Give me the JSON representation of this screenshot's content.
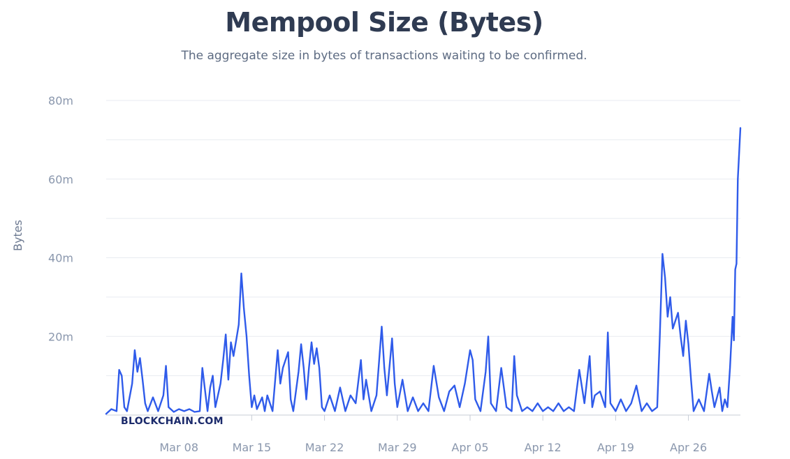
{
  "title": "Mempool Size (Bytes)",
  "subtitle": "The aggregate size in bytes of transactions waiting to be confirmed.",
  "watermark": "BLOCKCHAIN.COM",
  "colors": {
    "line": "#2f5bea",
    "grid": "#e8ebf0",
    "axis": "#c7ccd6",
    "text": "#8a97ad"
  },
  "chart_data": {
    "type": "line",
    "ylabel": "Bytes",
    "ylim": [
      0,
      80000000
    ],
    "yticks": [
      {
        "value": 20000000,
        "label": "20m"
      },
      {
        "value": 40000000,
        "label": "40m"
      },
      {
        "value": 60000000,
        "label": "60m"
      },
      {
        "value": 80000000,
        "label": "80m"
      }
    ],
    "xlim": [
      "2024-03-01",
      "2024-05-01"
    ],
    "xticks": [
      {
        "date": "2024-03-08",
        "label": "Mar 08"
      },
      {
        "date": "2024-03-15",
        "label": "Mar 15"
      },
      {
        "date": "2024-03-22",
        "label": "Mar 22"
      },
      {
        "date": "2024-03-29",
        "label": "Mar 29"
      },
      {
        "date": "2024-04-05",
        "label": "Apr 05"
      },
      {
        "date": "2024-04-12",
        "label": "Apr 12"
      },
      {
        "date": "2024-04-19",
        "label": "Apr 19"
      },
      {
        "date": "2024-04-26",
        "label": "Apr 26"
      }
    ],
    "grid": true,
    "series": [
      {
        "color": "#2f5bea",
        "points": [
          [
            "2024-03-01",
            300000
          ],
          [
            "2024-03-01T12:00",
            1500000
          ],
          [
            "2024-03-02",
            1000000
          ],
          [
            "2024-03-02T06:00",
            11500000
          ],
          [
            "2024-03-02T12:00",
            10000000
          ],
          [
            "2024-03-02T18:00",
            2000000
          ],
          [
            "2024-03-03",
            1000000
          ],
          [
            "2024-03-03T12:00",
            8000000
          ],
          [
            "2024-03-03T18:00",
            16500000
          ],
          [
            "2024-03-04",
            11000000
          ],
          [
            "2024-03-04T06:00",
            14500000
          ],
          [
            "2024-03-04T12:00",
            9000000
          ],
          [
            "2024-03-04T18:00",
            3000000
          ],
          [
            "2024-03-05",
            1000000
          ],
          [
            "2024-03-05T12:00",
            4500000
          ],
          [
            "2024-03-06",
            1000000
          ],
          [
            "2024-03-06T12:00",
            5000000
          ],
          [
            "2024-03-06T18:00",
            12500000
          ],
          [
            "2024-03-07",
            2000000
          ],
          [
            "2024-03-07T12:00",
            800000
          ],
          [
            "2024-03-08",
            1500000
          ],
          [
            "2024-03-08T12:00",
            1000000
          ],
          [
            "2024-03-09",
            1500000
          ],
          [
            "2024-03-09T12:00",
            800000
          ],
          [
            "2024-03-10",
            1000000
          ],
          [
            "2024-03-10T06:00",
            12000000
          ],
          [
            "2024-03-10T18:00",
            1000000
          ],
          [
            "2024-03-11",
            7000000
          ],
          [
            "2024-03-11T06:00",
            10000000
          ],
          [
            "2024-03-11T12:00",
            2000000
          ],
          [
            "2024-03-12",
            8000000
          ],
          [
            "2024-03-12T06:00",
            14000000
          ],
          [
            "2024-03-12T12:00",
            20500000
          ],
          [
            "2024-03-12T18:00",
            9000000
          ],
          [
            "2024-03-13",
            18500000
          ],
          [
            "2024-03-13T06:00",
            15000000
          ],
          [
            "2024-03-13T12:00",
            19000000
          ],
          [
            "2024-03-13T18:00",
            23000000
          ],
          [
            "2024-03-14",
            36000000
          ],
          [
            "2024-03-14T06:00",
            27000000
          ],
          [
            "2024-03-14T12:00",
            20000000
          ],
          [
            "2024-03-14T18:00",
            10000000
          ],
          [
            "2024-03-15",
            2000000
          ],
          [
            "2024-03-15T06:00",
            5000000
          ],
          [
            "2024-03-15T12:00",
            1500000
          ],
          [
            "2024-03-16",
            4500000
          ],
          [
            "2024-03-16T06:00",
            1000000
          ],
          [
            "2024-03-16T12:00",
            5000000
          ],
          [
            "2024-03-17",
            1000000
          ],
          [
            "2024-03-17T12:00",
            16500000
          ],
          [
            "2024-03-17T18:00",
            8000000
          ],
          [
            "2024-03-18",
            12000000
          ],
          [
            "2024-03-18T12:00",
            16000000
          ],
          [
            "2024-03-18T18:00",
            4000000
          ],
          [
            "2024-03-19",
            1000000
          ],
          [
            "2024-03-19T12:00",
            11000000
          ],
          [
            "2024-03-19T18:00",
            18000000
          ],
          [
            "2024-03-20",
            12000000
          ],
          [
            "2024-03-20T06:00",
            4000000
          ],
          [
            "2024-03-20T12:00",
            12000000
          ],
          [
            "2024-03-20T18:00",
            18500000
          ],
          [
            "2024-03-21",
            13000000
          ],
          [
            "2024-03-21T06:00",
            17000000
          ],
          [
            "2024-03-21T12:00",
            12000000
          ],
          [
            "2024-03-21T18:00",
            2000000
          ],
          [
            "2024-03-22",
            1000000
          ],
          [
            "2024-03-22T12:00",
            5000000
          ],
          [
            "2024-03-23",
            1000000
          ],
          [
            "2024-03-23T12:00",
            7000000
          ],
          [
            "2024-03-24",
            1000000
          ],
          [
            "2024-03-24T12:00",
            5000000
          ],
          [
            "2024-03-25",
            3000000
          ],
          [
            "2024-03-25T12:00",
            14000000
          ],
          [
            "2024-03-25T18:00",
            4000000
          ],
          [
            "2024-03-26",
            9000000
          ],
          [
            "2024-03-26T12:00",
            1000000
          ],
          [
            "2024-03-27",
            5000000
          ],
          [
            "2024-03-27T12:00",
            22500000
          ],
          [
            "2024-03-27T18:00",
            12000000
          ],
          [
            "2024-03-28",
            5000000
          ],
          [
            "2024-03-28T12:00",
            19500000
          ],
          [
            "2024-03-28T18:00",
            8000000
          ],
          [
            "2024-03-29",
            2000000
          ],
          [
            "2024-03-29T12:00",
            9000000
          ],
          [
            "2024-03-30",
            1000000
          ],
          [
            "2024-03-30T12:00",
            4500000
          ],
          [
            "2024-03-31",
            1000000
          ],
          [
            "2024-03-31T12:00",
            3000000
          ],
          [
            "2024-04-01",
            1000000
          ],
          [
            "2024-04-01T12:00",
            12500000
          ],
          [
            "2024-04-02",
            4500000
          ],
          [
            "2024-04-02T12:00",
            1000000
          ],
          [
            "2024-04-03",
            6000000
          ],
          [
            "2024-04-03T12:00",
            7500000
          ],
          [
            "2024-04-04",
            2000000
          ],
          [
            "2024-04-04T12:00",
            8000000
          ],
          [
            "2024-04-05",
            16500000
          ],
          [
            "2024-04-05T06:00",
            14000000
          ],
          [
            "2024-04-05T12:00",
            4000000
          ],
          [
            "2024-04-06",
            1000000
          ],
          [
            "2024-04-06T12:00",
            11000000
          ],
          [
            "2024-04-06T18:00",
            20000000
          ],
          [
            "2024-04-07",
            3000000
          ],
          [
            "2024-04-07T12:00",
            1000000
          ],
          [
            "2024-04-08",
            12000000
          ],
          [
            "2024-04-08T12:00",
            2000000
          ],
          [
            "2024-04-09",
            1000000
          ],
          [
            "2024-04-09T06:00",
            15000000
          ],
          [
            "2024-04-09T12:00",
            5000000
          ],
          [
            "2024-04-10",
            1000000
          ],
          [
            "2024-04-10T12:00",
            2000000
          ],
          [
            "2024-04-11",
            1000000
          ],
          [
            "2024-04-11T12:00",
            3000000
          ],
          [
            "2024-04-12",
            1000000
          ],
          [
            "2024-04-12T12:00",
            2000000
          ],
          [
            "2024-04-13",
            1000000
          ],
          [
            "2024-04-13T12:00",
            3000000
          ],
          [
            "2024-04-14",
            1000000
          ],
          [
            "2024-04-14T12:00",
            2000000
          ],
          [
            "2024-04-15",
            1000000
          ],
          [
            "2024-04-15T12:00",
            11500000
          ],
          [
            "2024-04-16",
            3000000
          ],
          [
            "2024-04-16T12:00",
            15000000
          ],
          [
            "2024-04-16T18:00",
            2000000
          ],
          [
            "2024-04-17",
            5000000
          ],
          [
            "2024-04-17T12:00",
            6000000
          ],
          [
            "2024-04-18",
            2000000
          ],
          [
            "2024-04-18T06:00",
            21000000
          ],
          [
            "2024-04-18T12:00",
            3000000
          ],
          [
            "2024-04-19",
            1000000
          ],
          [
            "2024-04-19T12:00",
            4000000
          ],
          [
            "2024-04-20",
            1000000
          ],
          [
            "2024-04-20T12:00",
            3000000
          ],
          [
            "2024-04-21",
            7500000
          ],
          [
            "2024-04-21T12:00",
            1000000
          ],
          [
            "2024-04-22",
            3000000
          ],
          [
            "2024-04-22T12:00",
            1000000
          ],
          [
            "2024-04-23",
            2000000
          ],
          [
            "2024-04-23T06:00",
            20000000
          ],
          [
            "2024-04-23T12:00",
            41000000
          ],
          [
            "2024-04-23T18:00",
            35000000
          ],
          [
            "2024-04-24",
            25000000
          ],
          [
            "2024-04-24T06:00",
            30000000
          ],
          [
            "2024-04-24T12:00",
            22000000
          ],
          [
            "2024-04-25",
            26000000
          ],
          [
            "2024-04-25T06:00",
            20000000
          ],
          [
            "2024-04-25T12:00",
            15000000
          ],
          [
            "2024-04-25T18:00",
            24000000
          ],
          [
            "2024-04-26",
            18000000
          ],
          [
            "2024-04-26T06:00",
            9000000
          ],
          [
            "2024-04-26T12:00",
            1000000
          ],
          [
            "2024-04-27",
            4000000
          ],
          [
            "2024-04-27T12:00",
            1000000
          ],
          [
            "2024-04-28",
            10500000
          ],
          [
            "2024-04-28T06:00",
            6000000
          ],
          [
            "2024-04-28T12:00",
            2000000
          ],
          [
            "2024-04-29",
            7000000
          ],
          [
            "2024-04-29T06:00",
            1000000
          ],
          [
            "2024-04-29T12:00",
            4000000
          ],
          [
            "2024-04-29T18:00",
            2000000
          ],
          [
            "2024-04-30",
            12000000
          ],
          [
            "2024-04-30T06:00",
            25000000
          ],
          [
            "2024-04-30T09:00",
            19000000
          ],
          [
            "2024-04-30T12:00",
            37000000
          ],
          [
            "2024-04-30T15:00",
            38500000
          ],
          [
            "2024-04-30T18:00",
            60000000
          ],
          [
            "2024-05-01",
            73000000
          ]
        ]
      }
    ]
  }
}
